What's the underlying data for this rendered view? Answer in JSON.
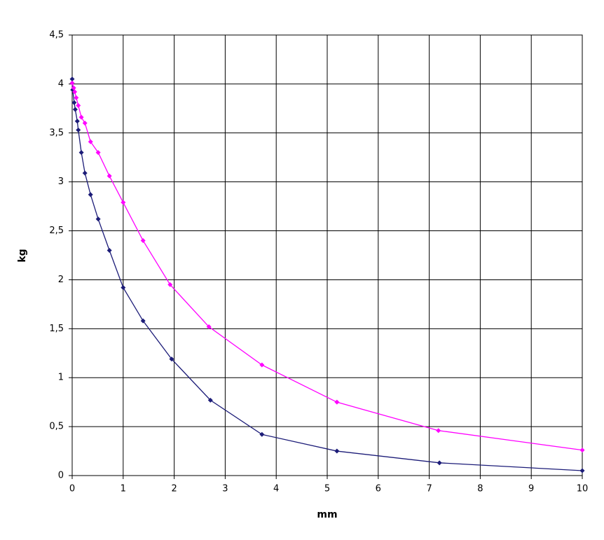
{
  "chart_data": {
    "type": "scatter",
    "xlabel": "mm",
    "ylabel": "kg",
    "xlim": [
      0,
      10
    ],
    "ylim": [
      0,
      4.5
    ],
    "xticks": [
      0,
      1,
      2,
      3,
      4,
      5,
      6,
      7,
      8,
      9,
      10
    ],
    "yticks": [
      0,
      {
        "value": 0.5,
        "label": "0,5"
      },
      1,
      {
        "value": 1.5,
        "label": "1,5"
      },
      2,
      {
        "value": 2.5,
        "label": "2,5"
      },
      3,
      {
        "value": 3.5,
        "label": "3,5"
      },
      4,
      {
        "value": 4.5,
        "label": "4,5"
      }
    ],
    "grid": true,
    "series": [
      {
        "color": "#1c1c78",
        "x": [
          0,
          0.01,
          0.04,
          0.06,
          0.1,
          0.12,
          0.18,
          0.25,
          0.36,
          0.51,
          0.73,
          1.0,
          1.39,
          1.95,
          2.71,
          3.72,
          5.19,
          7.2,
          10
        ],
        "values": [
          4.05,
          3.94,
          3.81,
          3.74,
          3.62,
          3.53,
          3.3,
          3.09,
          2.87,
          2.62,
          2.3,
          1.92,
          1.58,
          1.19,
          0.77,
          0.42,
          0.25,
          0.13,
          0.05
        ]
      },
      {
        "color": "#ff00ff",
        "x": [
          0,
          0.03,
          0.05,
          0.08,
          0.12,
          0.18,
          0.25,
          0.36,
          0.51,
          0.73,
          1.0,
          1.39,
          1.92,
          2.68,
          3.72,
          5.19,
          7.18,
          10
        ],
        "values": [
          4.01,
          3.96,
          3.92,
          3.86,
          3.78,
          3.66,
          3.6,
          3.41,
          3.3,
          3.06,
          2.79,
          2.4,
          1.95,
          1.52,
          1.13,
          0.75,
          0.46,
          0.26
        ]
      }
    ]
  }
}
